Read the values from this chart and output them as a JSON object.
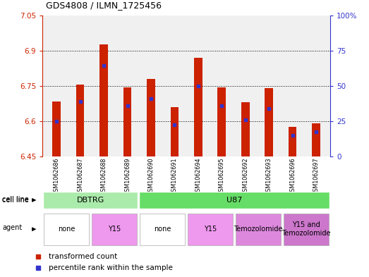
{
  "title": "GDS4808 / ILMN_1725456",
  "samples": [
    "GSM1062686",
    "GSM1062687",
    "GSM1062688",
    "GSM1062689",
    "GSM1062690",
    "GSM1062691",
    "GSM1062694",
    "GSM1062695",
    "GSM1062692",
    "GSM1062693",
    "GSM1062696",
    "GSM1062697"
  ],
  "bar_values": [
    6.685,
    6.755,
    6.925,
    6.745,
    6.78,
    6.66,
    6.87,
    6.745,
    6.68,
    6.74,
    6.575,
    6.59
  ],
  "blue_values": [
    6.6,
    6.685,
    6.835,
    6.665,
    6.695,
    6.585,
    6.75,
    6.665,
    6.605,
    6.655,
    6.54,
    6.555
  ],
  "ymin": 6.45,
  "ymax": 7.05,
  "yticks": [
    6.45,
    6.6,
    6.75,
    6.9,
    7.05
  ],
  "ytick_labels": [
    "6.45",
    "6.6",
    "6.75",
    "6.9",
    "7.05"
  ],
  "right_ytick_labels": [
    "0",
    "25",
    "50",
    "75",
    "100%"
  ],
  "bar_color": "#cc2200",
  "blue_color": "#3333cc",
  "cell_line_groups": [
    {
      "label": "DBTRG",
      "start": 0,
      "end": 3,
      "color": "#aaeaaa"
    },
    {
      "label": "U87",
      "start": 4,
      "end": 11,
      "color": "#66dd66"
    }
  ],
  "agent_groups": [
    {
      "label": "none",
      "start": 0,
      "end": 1,
      "color": "#ffffff"
    },
    {
      "label": "Y15",
      "start": 2,
      "end": 3,
      "color": "#ee99ee"
    },
    {
      "label": "none",
      "start": 4,
      "end": 5,
      "color": "#ffffff"
    },
    {
      "label": "Y15",
      "start": 6,
      "end": 7,
      "color": "#ee99ee"
    },
    {
      "label": "Temozolomide",
      "start": 8,
      "end": 9,
      "color": "#dd88dd"
    },
    {
      "label": "Y15 and\nTemozolomide",
      "start": 10,
      "end": 11,
      "color": "#cc77cc"
    }
  ],
  "legend_items": [
    {
      "label": "transformed count",
      "color": "#cc2200"
    },
    {
      "label": "percentile rank within the sample",
      "color": "#3333cc"
    }
  ]
}
